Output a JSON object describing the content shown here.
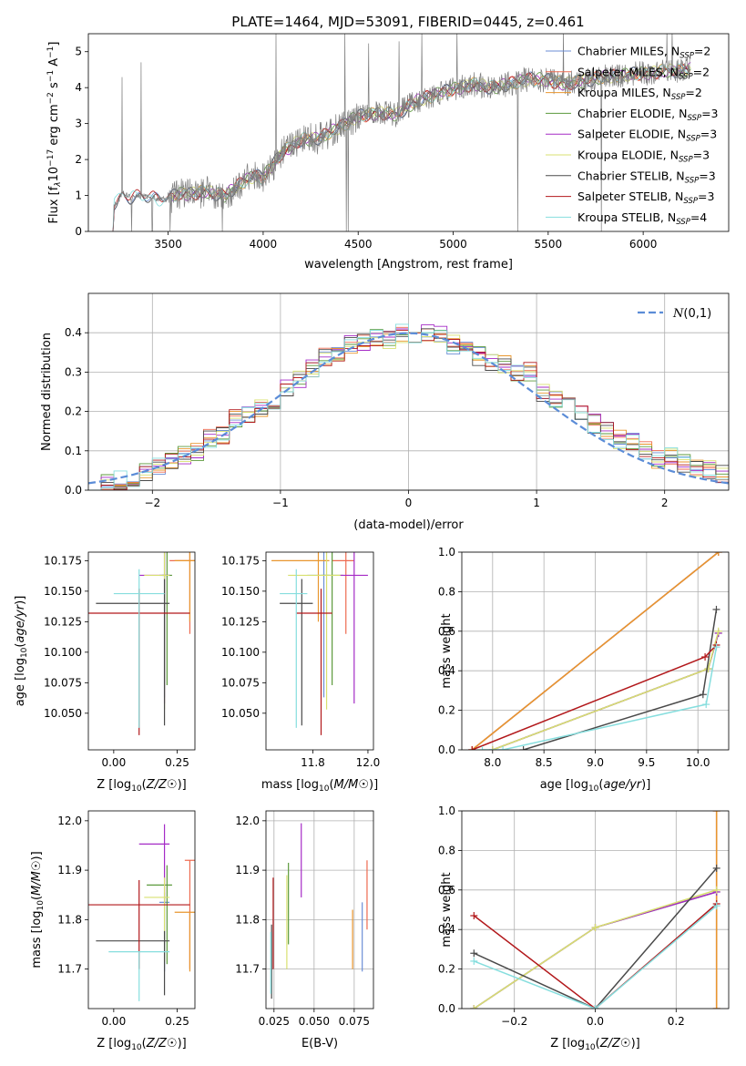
{
  "figure_title": "PLATE=1464, MJD=53091, FIBERID=0445, z=0.461",
  "colors": {
    "Chabrier MILES": "#6b8ed6",
    "Salpeter MILES": "#ee6a50",
    "Kroupa MILES": "#e8962e",
    "Chabrier ELODIE": "#5c9a3c",
    "Salpeter ELODIE": "#a52bc6",
    "Kroupa ELODIE": "#d8e070",
    "Chabrier STELIB": "#4a4a4a",
    "Salpeter STELIB": "#b2181b",
    "Kroupa STELIB": "#86dede",
    "spectrum": "#7f7f7f",
    "gauss": "#5b8cd7"
  },
  "chart_data": [
    {
      "type": "line",
      "title": "PLATE=1464, MJD=53091, FIBERID=0445, z=0.461",
      "xlabel": "wavelength [Angstrom, rest frame]",
      "ylabel_parts": [
        "Flux [f",
        "λ",
        "10",
        "−17",
        " erg cm",
        "−2",
        " s",
        "−1",
        " A",
        "−1",
        "]"
      ],
      "xlim": [
        3080,
        6450
      ],
      "ylim": [
        0,
        5.5
      ],
      "xticks": [
        "3500",
        "4000",
        "4500",
        "5000",
        "5500",
        "6000"
      ],
      "yticks": [
        "0",
        "1",
        "2",
        "3",
        "4",
        "5"
      ],
      "legend_position": "upper-right",
      "legend": [
        {
          "model": "Chabrier MILES",
          "nssp": "2"
        },
        {
          "model": "Salpeter MILES",
          "nssp": "2"
        },
        {
          "model": "Kroupa MILES",
          "nssp": "2"
        },
        {
          "model": "Chabrier ELODIE",
          "nssp": "3"
        },
        {
          "model": "Salpeter ELODIE",
          "nssp": "3"
        },
        {
          "model": "Kroupa ELODIE",
          "nssp": "3"
        },
        {
          "model": "Chabrier STELIB",
          "nssp": "3"
        },
        {
          "model": "Salpeter STELIB",
          "nssp": "3"
        },
        {
          "model": "Kroupa STELIB",
          "nssp": "4"
        }
      ],
      "spectrum_knots": [
        [
          3210,
          0
        ],
        [
          3215,
          0.75
        ],
        [
          3230,
          0.8
        ],
        [
          3260,
          1.05
        ],
        [
          3300,
          0.95
        ],
        [
          3350,
          1.0
        ],
        [
          3400,
          0.95
        ],
        [
          3450,
          0.9
        ],
        [
          3500,
          0.9
        ],
        [
          3550,
          1.05
        ],
        [
          3600,
          1.05
        ],
        [
          3700,
          1.1
        ],
        [
          3800,
          1.0
        ],
        [
          3900,
          1.4
        ],
        [
          3950,
          1.55
        ],
        [
          4000,
          1.5
        ],
        [
          4100,
          2.2
        ],
        [
          4200,
          2.55
        ],
        [
          4300,
          2.6
        ],
        [
          4400,
          2.9
        ],
        [
          4500,
          3.2
        ],
        [
          4600,
          3.3
        ],
        [
          4700,
          3.25
        ],
        [
          4800,
          3.6
        ],
        [
          4900,
          3.8
        ],
        [
          5000,
          3.95
        ],
        [
          5100,
          4.1
        ],
        [
          5200,
          4.0
        ],
        [
          5300,
          4.1
        ],
        [
          5400,
          4.25
        ],
        [
          5500,
          4.2
        ],
        [
          5600,
          4.1
        ],
        [
          5700,
          4.2
        ],
        [
          5800,
          4.3
        ],
        [
          5900,
          4.35
        ],
        [
          6000,
          4.4
        ],
        [
          6100,
          4.45
        ],
        [
          6250,
          4.5
        ]
      ]
    },
    {
      "type": "line",
      "xlabel": "(data-model)/error",
      "ylabel": "Normed distribution",
      "xlim": [
        -2.5,
        2.5
      ],
      "ylim": [
        0,
        0.5
      ],
      "xticks": [
        "−2",
        "−1",
        "0",
        "1",
        "2"
      ],
      "yticks": [
        "0.0",
        "0.1",
        "0.2",
        "0.3",
        "0.4"
      ],
      "legend": "N(0,1)",
      "legend_position": "upper-right",
      "hist_bins": 50,
      "hist_base": [
        0.018,
        0.02,
        0.025,
        0.03,
        0.045,
        0.06,
        0.07,
        0.09,
        0.1,
        0.13,
        0.14,
        0.18,
        0.19,
        0.21,
        0.22,
        0.26,
        0.28,
        0.31,
        0.34,
        0.35,
        0.37,
        0.38,
        0.39,
        0.38,
        0.4,
        0.39,
        0.4,
        0.4,
        0.37,
        0.36,
        0.34,
        0.32,
        0.32,
        0.3,
        0.3,
        0.25,
        0.23,
        0.24,
        0.2,
        0.17,
        0.15,
        0.13,
        0.12,
        0.1,
        0.08,
        0.09,
        0.07,
        0.06,
        0.05,
        0.04
      ]
    },
    {
      "type": "scatter",
      "xlabel": "Z [log10(Z/Z☉)]",
      "ylabel": "age  [log10(age/yr)]",
      "xlim": [
        -0.1,
        0.32
      ],
      "ylim": [
        10.02,
        10.182
      ],
      "xticks": [
        "0.00",
        "0.25"
      ],
      "yticks": [
        "10.050",
        "10.075",
        "10.100",
        "10.125",
        "10.150",
        "10.175"
      ],
      "crosses": [
        {
          "model": "Chabrier MILES",
          "x": 0.2,
          "xerr": [
            0.02,
            0.02
          ],
          "y": 10.163,
          "yerr": [
            0.1,
            0.02
          ]
        },
        {
          "model": "Salpeter MILES",
          "x": 0.3,
          "xerr": [
            0.08,
            0.02
          ],
          "y": 10.175,
          "yerr": [
            0.06,
            0.007
          ]
        },
        {
          "model": "Kroupa MILES",
          "x": 0.3,
          "xerr": [
            0.06,
            0.02
          ],
          "y": 10.175,
          "yerr": [
            0.05,
            0.007
          ]
        },
        {
          "model": "Chabrier ELODIE",
          "x": 0.21,
          "xerr": [
            0.02,
            0.02
          ],
          "y": 10.163,
          "yerr": [
            0.09,
            0.02
          ]
        },
        {
          "model": "Salpeter ELODIE",
          "x": 0.2,
          "xerr": [
            0.1,
            0.02
          ],
          "y": 10.163,
          "yerr": [
            0.105,
            0.02
          ]
        },
        {
          "model": "Kroupa ELODIE",
          "x": 0.2,
          "xerr": [
            0.08,
            0.02
          ],
          "y": 10.163,
          "yerr": [
            0.11,
            0.02
          ]
        },
        {
          "model": "Chabrier STELIB",
          "x": 0.2,
          "xerr": [
            0.27,
            0.02
          ],
          "y": 10.14,
          "yerr": [
            0.1,
            0.02
          ]
        },
        {
          "model": "Salpeter STELIB",
          "x": 0.1,
          "xerr": [
            0.2,
            0.2
          ],
          "y": 10.132,
          "yerr": [
            0.1,
            0.02
          ]
        },
        {
          "model": "Kroupa STELIB",
          "x": 0.1,
          "xerr": [
            0.1,
            0.1
          ],
          "y": 10.148,
          "yerr": [
            0.11,
            0.02
          ]
        }
      ]
    },
    {
      "type": "scatter",
      "xlabel": "mass [log10(M/M☉)]",
      "xlim": [
        11.63,
        12.02
      ],
      "ylim": [
        10.02,
        10.182
      ],
      "xticks": [
        "11.8",
        "12.0"
      ],
      "yticks": [
        "10.050",
        "10.075",
        "10.100",
        "10.125",
        "10.150",
        "10.175"
      ],
      "crosses": [
        {
          "model": "Chabrier MILES",
          "x": 11.84,
          "xerr": [
            0.06,
            0.02
          ],
          "y": 10.163,
          "yerr": [
            0.1,
            0.02
          ]
        },
        {
          "model": "Salpeter MILES",
          "x": 11.92,
          "xerr": [
            0.05,
            0.03
          ],
          "y": 10.175,
          "yerr": [
            0.06,
            0.007
          ]
        },
        {
          "model": "Kroupa MILES",
          "x": 11.82,
          "xerr": [
            0.17,
            0.04
          ],
          "y": 10.175,
          "yerr": [
            0.05,
            0.007
          ]
        },
        {
          "model": "Chabrier ELODIE",
          "x": 11.87,
          "xerr": [
            0.04,
            0.04
          ],
          "y": 10.163,
          "yerr": [
            0.09,
            0.02
          ]
        },
        {
          "model": "Salpeter ELODIE",
          "x": 11.95,
          "xerr": [
            0.05,
            0.05
          ],
          "y": 10.163,
          "yerr": [
            0.105,
            0.02
          ]
        },
        {
          "model": "Kroupa ELODIE",
          "x": 11.85,
          "xerr": [
            0.14,
            0.05
          ],
          "y": 10.163,
          "yerr": [
            0.11,
            0.02
          ]
        },
        {
          "model": "Chabrier STELIB",
          "x": 11.76,
          "xerr": [
            0.08,
            0.04
          ],
          "y": 10.14,
          "yerr": [
            0.1,
            0.02
          ]
        },
        {
          "model": "Salpeter STELIB",
          "x": 11.83,
          "xerr": [
            0.09,
            0.04
          ],
          "y": 10.132,
          "yerr": [
            0.1,
            0.02
          ]
        },
        {
          "model": "Kroupa STELIB",
          "x": 11.74,
          "xerr": [
            0.06,
            0.04
          ],
          "y": 10.148,
          "yerr": [
            0.11,
            0.02
          ]
        }
      ]
    },
    {
      "type": "line",
      "xlabel": "age  [log10(age/yr)]",
      "ylabel": "mass weight",
      "xlim": [
        7.7,
        10.3
      ],
      "ylim": [
        0,
        1
      ],
      "xticks": [
        "8.0",
        "8.5",
        "9.0",
        "9.5",
        "10.0"
      ],
      "yticks": [
        "0.0",
        "0.2",
        "0.4",
        "0.6",
        "0.8",
        "1.0"
      ],
      "series": [
        {
          "model": "Chabrier MILES",
          "x": [
            7.8,
            10.2
          ],
          "y": [
            0.0,
            1.0
          ]
        },
        {
          "model": "Salpeter MILES",
          "x": [
            7.8,
            10.2
          ],
          "y": [
            0.0,
            1.0
          ]
        },
        {
          "model": "Kroupa MILES",
          "x": [
            7.8,
            10.2
          ],
          "y": [
            0.0,
            1.0
          ]
        },
        {
          "model": "Chabrier ELODIE",
          "x": [
            8.0,
            10.1,
            10.2
          ],
          "y": [
            0.0,
            0.41,
            0.59
          ]
        },
        {
          "model": "Salpeter ELODIE",
          "x": [
            8.0,
            10.1,
            10.2
          ],
          "y": [
            0.0,
            0.41,
            0.59
          ]
        },
        {
          "model": "Kroupa ELODIE",
          "x": [
            8.0,
            10.1,
            10.2
          ],
          "y": [
            0.0,
            0.41,
            0.6
          ]
        },
        {
          "model": "Chabrier STELIB",
          "x": [
            8.3,
            10.05,
            10.18
          ],
          "y": [
            0.0,
            0.28,
            0.71
          ]
        },
        {
          "model": "Salpeter STELIB",
          "x": [
            7.8,
            10.07,
            10.18
          ],
          "y": [
            0.0,
            0.47,
            0.53
          ]
        },
        {
          "model": "Kroupa STELIB",
          "x": [
            7.9,
            8.1,
            10.08,
            10.18
          ],
          "y": [
            0.0,
            0.0,
            0.23,
            0.52
          ]
        }
      ]
    },
    {
      "type": "scatter",
      "xlabel": "Z [log10(Z/Z☉)]",
      "ylabel": "mass [log10(M/M☉)]",
      "xlim": [
        -0.1,
        0.32
      ],
      "ylim": [
        11.62,
        12.02
      ],
      "xticks": [
        "0.00",
        "0.25"
      ],
      "yticks": [
        "11.7",
        "11.8",
        "11.9",
        "12.0"
      ],
      "crosses": [
        {
          "model": "Chabrier MILES",
          "x": 0.2,
          "xerr": [
            0.02,
            0.02
          ],
          "y": 11.835,
          "yerr": [
            0.14,
            0.02
          ]
        },
        {
          "model": "Salpeter MILES",
          "x": 0.3,
          "xerr": [
            0.02,
            0.02
          ],
          "y": 11.92,
          "yerr": [
            0.22,
            0.0
          ]
        },
        {
          "model": "Kroupa MILES",
          "x": 0.3,
          "xerr": [
            0.06,
            0.02
          ],
          "y": 11.815,
          "yerr": [
            0.12,
            0.0
          ]
        },
        {
          "model": "Chabrier ELODIE",
          "x": 0.21,
          "xerr": [
            0.08,
            0.02
          ],
          "y": 11.87,
          "yerr": [
            0.16,
            0.04
          ]
        },
        {
          "model": "Salpeter ELODIE",
          "x": 0.2,
          "xerr": [
            0.1,
            0.02
          ],
          "y": 11.953,
          "yerr": [
            0.12,
            0.04
          ]
        },
        {
          "model": "Kroupa ELODIE",
          "x": 0.2,
          "xerr": [
            0.08,
            0.02
          ],
          "y": 11.845,
          "yerr": [
            0.13,
            0.04
          ]
        },
        {
          "model": "Chabrier STELIB",
          "x": 0.2,
          "xerr": [
            0.27,
            0.02
          ],
          "y": 11.757,
          "yerr": [
            0.11,
            0.02
          ]
        },
        {
          "model": "Salpeter STELIB",
          "x": 0.1,
          "xerr": [
            0.2,
            0.2
          ],
          "y": 11.83,
          "yerr": [
            0.13,
            0.05
          ]
        },
        {
          "model": "Kroupa STELIB",
          "x": 0.1,
          "xerr": [
            0.12,
            0.12
          ],
          "y": 11.735,
          "yerr": [
            0.1,
            0.0
          ]
        }
      ]
    },
    {
      "type": "scatter",
      "xlabel": "E(B-V)",
      "xlim": [
        0.02,
        0.087
      ],
      "ylim": [
        11.62,
        12.02
      ],
      "xticks": [
        "0.025",
        "0.050",
        "0.075"
      ],
      "yticks": [
        "11.7",
        "11.8",
        "11.9",
        "12.0"
      ],
      "bars": [
        {
          "model": "Chabrier MILES",
          "x": 0.08,
          "ylo": 11.695,
          "yhi": 11.835
        },
        {
          "model": "Salpeter MILES",
          "x": 0.083,
          "ylo": 11.78,
          "yhi": 11.92
        },
        {
          "model": "Kroupa MILES",
          "x": 0.074,
          "ylo": 11.7,
          "yhi": 11.82
        },
        {
          "model": "Chabrier ELODIE",
          "x": 0.034,
          "ylo": 11.75,
          "yhi": 11.915
        },
        {
          "model": "Salpeter ELODIE",
          "x": 0.042,
          "ylo": 11.845,
          "yhi": 11.995
        },
        {
          "model": "Kroupa ELODIE",
          "x": 0.033,
          "ylo": 11.7,
          "yhi": 11.89
        },
        {
          "model": "Chabrier STELIB",
          "x": 0.0235,
          "ylo": 11.64,
          "yhi": 11.79
        },
        {
          "model": "Salpeter STELIB",
          "x": 0.0245,
          "ylo": 11.7,
          "yhi": 11.885
        },
        {
          "model": "Kroupa STELIB",
          "x": 0.023,
          "ylo": 11.65,
          "yhi": 11.775
        }
      ]
    },
    {
      "type": "line",
      "xlabel": "Z [log10(Z/Z☉)]",
      "ylabel": "mass weight",
      "xlim": [
        -0.33,
        0.33
      ],
      "ylim": [
        0,
        1
      ],
      "xticks": [
        "−0.2",
        "0.0",
        "0.2"
      ],
      "yticks": [
        "0.0",
        "0.2",
        "0.4",
        "0.6",
        "0.8",
        "1.0"
      ],
      "series": [
        {
          "model": "Chabrier MILES",
          "x": [
            0.3,
            0.3
          ],
          "y": [
            0.0,
            1.0
          ]
        },
        {
          "model": "Salpeter MILES",
          "x": [
            0.3,
            0.3
          ],
          "y": [
            0.0,
            1.0
          ]
        },
        {
          "model": "Kroupa MILES",
          "x": [
            0.3,
            0.3
          ],
          "y": [
            0.0,
            1.0
          ]
        },
        {
          "model": "Chabrier ELODIE",
          "x": [
            -0.3,
            0.0,
            0.3
          ],
          "y": [
            0.0,
            0.41,
            0.59
          ]
        },
        {
          "model": "Salpeter ELODIE",
          "x": [
            -0.3,
            0.0,
            0.3
          ],
          "y": [
            0.0,
            0.41,
            0.59
          ]
        },
        {
          "model": "Kroupa ELODIE",
          "x": [
            -0.3,
            0.0,
            0.3
          ],
          "y": [
            0.0,
            0.41,
            0.6
          ]
        },
        {
          "model": "Chabrier STELIB",
          "x": [
            -0.3,
            0.0,
            0.3
          ],
          "y": [
            0.28,
            0.0,
            0.71
          ]
        },
        {
          "model": "Salpeter STELIB",
          "x": [
            -0.3,
            0.0,
            0.3
          ],
          "y": [
            0.47,
            0.0,
            0.53
          ]
        },
        {
          "model": "Kroupa STELIB",
          "x": [
            -0.3,
            0.0,
            0.3
          ],
          "y": [
            0.24,
            0.0,
            0.52
          ]
        }
      ]
    }
  ]
}
